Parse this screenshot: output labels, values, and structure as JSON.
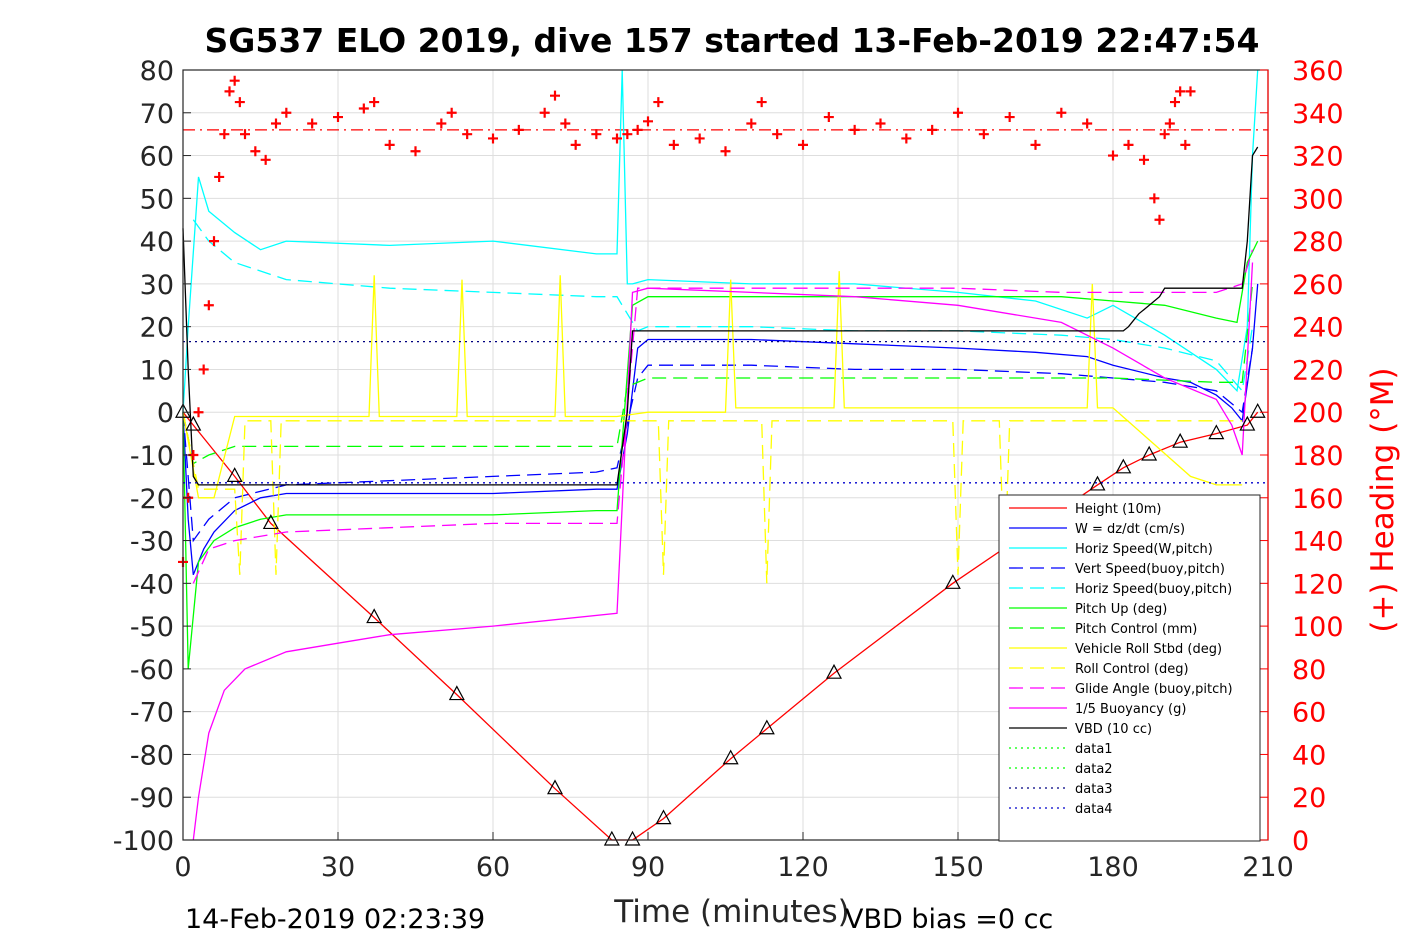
{
  "chart_data": {
    "type": "line",
    "title": "SG537 ELO 2019, dive 157 started 13-Feb-2019 22:47:54",
    "xlabel": "Time (minutes)",
    "ylabel_right": "(+) Heading (°M)",
    "xlim": [
      0,
      210
    ],
    "ylim": [
      -100,
      80
    ],
    "ylim_right": [
      0,
      360
    ],
    "x_ticks": [
      "0",
      "30",
      "60",
      "90",
      "120",
      "150",
      "180",
      "210"
    ],
    "y_ticks": [
      "80",
      "70",
      "60",
      "50",
      "40",
      "30",
      "20",
      "10",
      "0",
      "-10",
      "-20",
      "-30",
      "-40",
      "-50",
      "-60",
      "-70",
      "-80",
      "-90",
      "-100"
    ],
    "y_right_ticks": [
      "360",
      "340",
      "320",
      "300",
      "280",
      "260",
      "240",
      "220",
      "200",
      "180",
      "160",
      "140",
      "120",
      "100",
      "80",
      "60",
      "40",
      "20",
      "0"
    ],
    "grid": true,
    "legend_position": "lower-right",
    "footer_left": "14-Feb-2019 02:23:39",
    "footer_right": "VBD bias =0 cc",
    "series": [
      {
        "name": "Height (10m)",
        "color": "#ff0000",
        "style": "solid",
        "x": [
          0,
          2,
          10,
          17,
          37,
          53,
          72,
          83,
          87,
          93,
          106,
          113,
          126,
          149,
          177,
          182,
          187,
          193,
          200,
          206,
          208
        ],
        "y": [
          0,
          -3,
          -15,
          -26,
          -48,
          -66,
          -88,
          -100,
          -100,
          -95,
          -81,
          -74,
          -61,
          -40,
          -17,
          -13,
          -10,
          -7,
          -5,
          -3,
          0
        ]
      },
      {
        "name": "W = dz/dt (cm/s)",
        "color": "#0000ff",
        "style": "solid",
        "x": [
          0,
          1,
          2,
          4,
          6,
          10,
          15,
          20,
          40,
          60,
          80,
          84,
          86,
          88,
          90,
          110,
          130,
          150,
          165,
          175,
          180,
          190,
          195,
          200,
          203,
          205,
          207,
          208
        ],
        "y": [
          0,
          -25,
          -38,
          -32,
          -28,
          -23,
          -20,
          -19,
          -19,
          -19,
          -18,
          -18,
          -5,
          15,
          17,
          17,
          16,
          15,
          14,
          13,
          11,
          8,
          7,
          4,
          1,
          -2,
          15,
          30
        ]
      },
      {
        "name": "Horiz Speed(W,pitch)",
        "color": "#00ffff",
        "style": "solid",
        "x": [
          0,
          1,
          3,
          5,
          10,
          15,
          20,
          40,
          60,
          80,
          84,
          85,
          86,
          87,
          90,
          110,
          130,
          150,
          165,
          175,
          180,
          190,
          195,
          200,
          204,
          206,
          207,
          208
        ],
        "y": [
          0,
          20,
          55,
          47,
          42,
          38,
          40,
          39,
          40,
          37,
          37,
          80,
          30,
          30,
          31,
          30,
          30,
          28,
          26,
          22,
          25,
          18,
          14,
          10,
          5,
          20,
          60,
          80
        ]
      },
      {
        "name": "Vert Speed(buoy,pitch)",
        "color": "#0000ff",
        "style": "dashed",
        "x": [
          0,
          2,
          5,
          10,
          20,
          40,
          60,
          80,
          84,
          88,
          90,
          110,
          130,
          150,
          170,
          180,
          190,
          200,
          205,
          207
        ],
        "y": [
          0,
          -30,
          -25,
          -20,
          -17,
          -16,
          -15,
          -14,
          -13,
          8,
          11,
          11,
          10,
          10,
          9,
          8,
          7,
          5,
          0,
          15
        ]
      },
      {
        "name": "Horiz Speed(buoy,pitch)",
        "color": "#00ffff",
        "style": "dashed",
        "x": [
          2,
          5,
          10,
          20,
          40,
          60,
          80,
          84,
          88,
          90,
          110,
          130,
          150,
          170,
          180,
          190,
          200,
          205,
          207
        ],
        "y": [
          45,
          40,
          35,
          31,
          29,
          28,
          27,
          27,
          19,
          20,
          20,
          19,
          19,
          18,
          17,
          15,
          12,
          5,
          20
        ]
      },
      {
        "name": "Pitch Up (deg)",
        "color": "#00ff00",
        "style": "solid",
        "x": [
          0,
          1,
          3,
          6,
          10,
          15,
          20,
          40,
          60,
          80,
          84,
          87,
          90,
          110,
          130,
          150,
          170,
          180,
          190,
          200,
          204,
          206,
          208
        ],
        "y": [
          0,
          -60,
          -35,
          -30,
          -27,
          -25,
          -24,
          -24,
          -24,
          -23,
          -23,
          25,
          27,
          27,
          27,
          27,
          27,
          26,
          25,
          22,
          21,
          35,
          40
        ]
      },
      {
        "name": "Pitch Control (mm)",
        "color": "#00ff00",
        "style": "dashed",
        "x": [
          0,
          2,
          5,
          10,
          84,
          86,
          90,
          180,
          200,
          205,
          207
        ],
        "y": [
          0,
          -12,
          -10,
          -8,
          -8,
          6,
          8,
          8,
          7,
          7,
          30
        ]
      },
      {
        "name": "Vehicle Roll Stbd (deg)",
        "color": "#ffff00",
        "style": "solid",
        "x": [
          0,
          3,
          6,
          10,
          20,
          36,
          37,
          38,
          53,
          54,
          55,
          72,
          73,
          74,
          84,
          90,
          105,
          106,
          107,
          126,
          127,
          128,
          175,
          176,
          177,
          180,
          195,
          200,
          205
        ],
        "y": [
          0,
          -20,
          -20,
          -1,
          -1,
          -1,
          32,
          -1,
          -1,
          31,
          -1,
          -1,
          32,
          -1,
          -1,
          0,
          0,
          31,
          1,
          1,
          33,
          1,
          1,
          30,
          1,
          1,
          -15,
          -17,
          -17
        ]
      },
      {
        "name": "Roll Control (deg)",
        "color": "#ffff00",
        "style": "dashed",
        "x": [
          0,
          3,
          10,
          11,
          12,
          17,
          18,
          19,
          84,
          92,
          93,
          94,
          112,
          113,
          114,
          149,
          150,
          151,
          158,
          159,
          160,
          205
        ],
        "y": [
          0,
          -18,
          -18,
          -38,
          -2,
          -2,
          -38,
          -2,
          -2,
          -2,
          -38,
          -2,
          -2,
          -40,
          -2,
          -2,
          -38,
          -2,
          -2,
          -38,
          -2,
          -2
        ]
      },
      {
        "name": "Glide Angle (buoy,pitch)",
        "color": "#ff00ff",
        "style": "dashed",
        "x": [
          2,
          5,
          10,
          20,
          40,
          60,
          80,
          84,
          88,
          90,
          110,
          130,
          150,
          170,
          180,
          190,
          200,
          205,
          207
        ],
        "y": [
          -40,
          -32,
          -30,
          -28,
          -27,
          -26,
          -26,
          -26,
          29,
          29,
          29,
          29,
          29,
          28,
          28,
          28,
          28,
          30,
          38
        ]
      },
      {
        "name": "1/5 Buoyancy (g)",
        "color": "#ff00ff",
        "style": "solid",
        "x": [
          2,
          3,
          5,
          8,
          12,
          20,
          30,
          40,
          60,
          84,
          87,
          90,
          110,
          130,
          150,
          170,
          180,
          190,
          200,
          203,
          205,
          207
        ],
        "y": [
          -100,
          -90,
          -75,
          -65,
          -60,
          -56,
          -54,
          -52,
          -50,
          -47,
          28,
          29,
          28,
          27,
          25,
          21,
          15,
          8,
          3,
          -3,
          -10,
          35
        ]
      },
      {
        "name": "VBD (10 cc)",
        "color": "#000000",
        "style": "solid",
        "x": [
          0,
          1,
          2,
          3,
          84,
          86,
          87,
          178,
          182,
          183,
          185,
          186,
          189,
          190,
          205,
          206,
          207,
          208
        ],
        "y": [
          43,
          10,
          -15,
          -17,
          -17,
          0,
          19,
          19,
          19,
          20,
          23,
          24,
          27,
          29,
          29,
          40,
          60,
          62
        ]
      },
      {
        "name": "data1",
        "color": "#00ff00",
        "style": "dotted",
        "x": [],
        "y": []
      },
      {
        "name": "data2",
        "color": "#00ff00",
        "style": "dotted",
        "x": [],
        "y": []
      },
      {
        "name": "data3",
        "color": "#000080",
        "style": "dotted",
        "x": [
          0,
          210
        ],
        "y": [
          16.5,
          16.5
        ]
      },
      {
        "name": "data4",
        "color": "#0000cc",
        "style": "dotted",
        "x": [
          0,
          210
        ],
        "y": [
          -16.5,
          -16.5
        ]
      }
    ],
    "reference_lines": [
      {
        "color": "#ff0000",
        "style": "dashdot",
        "axis": "right",
        "value": 332
      }
    ],
    "heading_series": {
      "name": "(+) Heading",
      "color": "#ff0000",
      "marker": "+",
      "axis": "right",
      "x": [
        0,
        1,
        2,
        3,
        4,
        5,
        6,
        7,
        8,
        9,
        10,
        11,
        12,
        14,
        16,
        18,
        20,
        25,
        30,
        35,
        37,
        40,
        45,
        50,
        52,
        55,
        60,
        65,
        70,
        72,
        74,
        76,
        80,
        84,
        86,
        88,
        90,
        92,
        95,
        100,
        105,
        110,
        112,
        115,
        120,
        125,
        130,
        135,
        140,
        145,
        150,
        155,
        160,
        165,
        170,
        175,
        180,
        183,
        186,
        188,
        189,
        190,
        191,
        192,
        193,
        194,
        195
      ],
      "y": [
        130,
        160,
        180,
        200,
        220,
        250,
        280,
        310,
        330,
        350,
        355,
        345,
        330,
        322,
        318,
        335,
        340,
        335,
        338,
        342,
        345,
        325,
        322,
        335,
        340,
        330,
        328,
        332,
        340,
        348,
        335,
        325,
        330,
        328,
        330,
        332,
        336,
        345,
        325,
        328,
        322,
        335,
        345,
        330,
        325,
        338,
        332,
        335,
        328,
        332,
        340,
        330,
        338,
        325,
        340,
        335,
        320,
        325,
        318,
        300,
        290,
        330,
        335,
        345,
        350,
        325,
        350
      ]
    }
  }
}
